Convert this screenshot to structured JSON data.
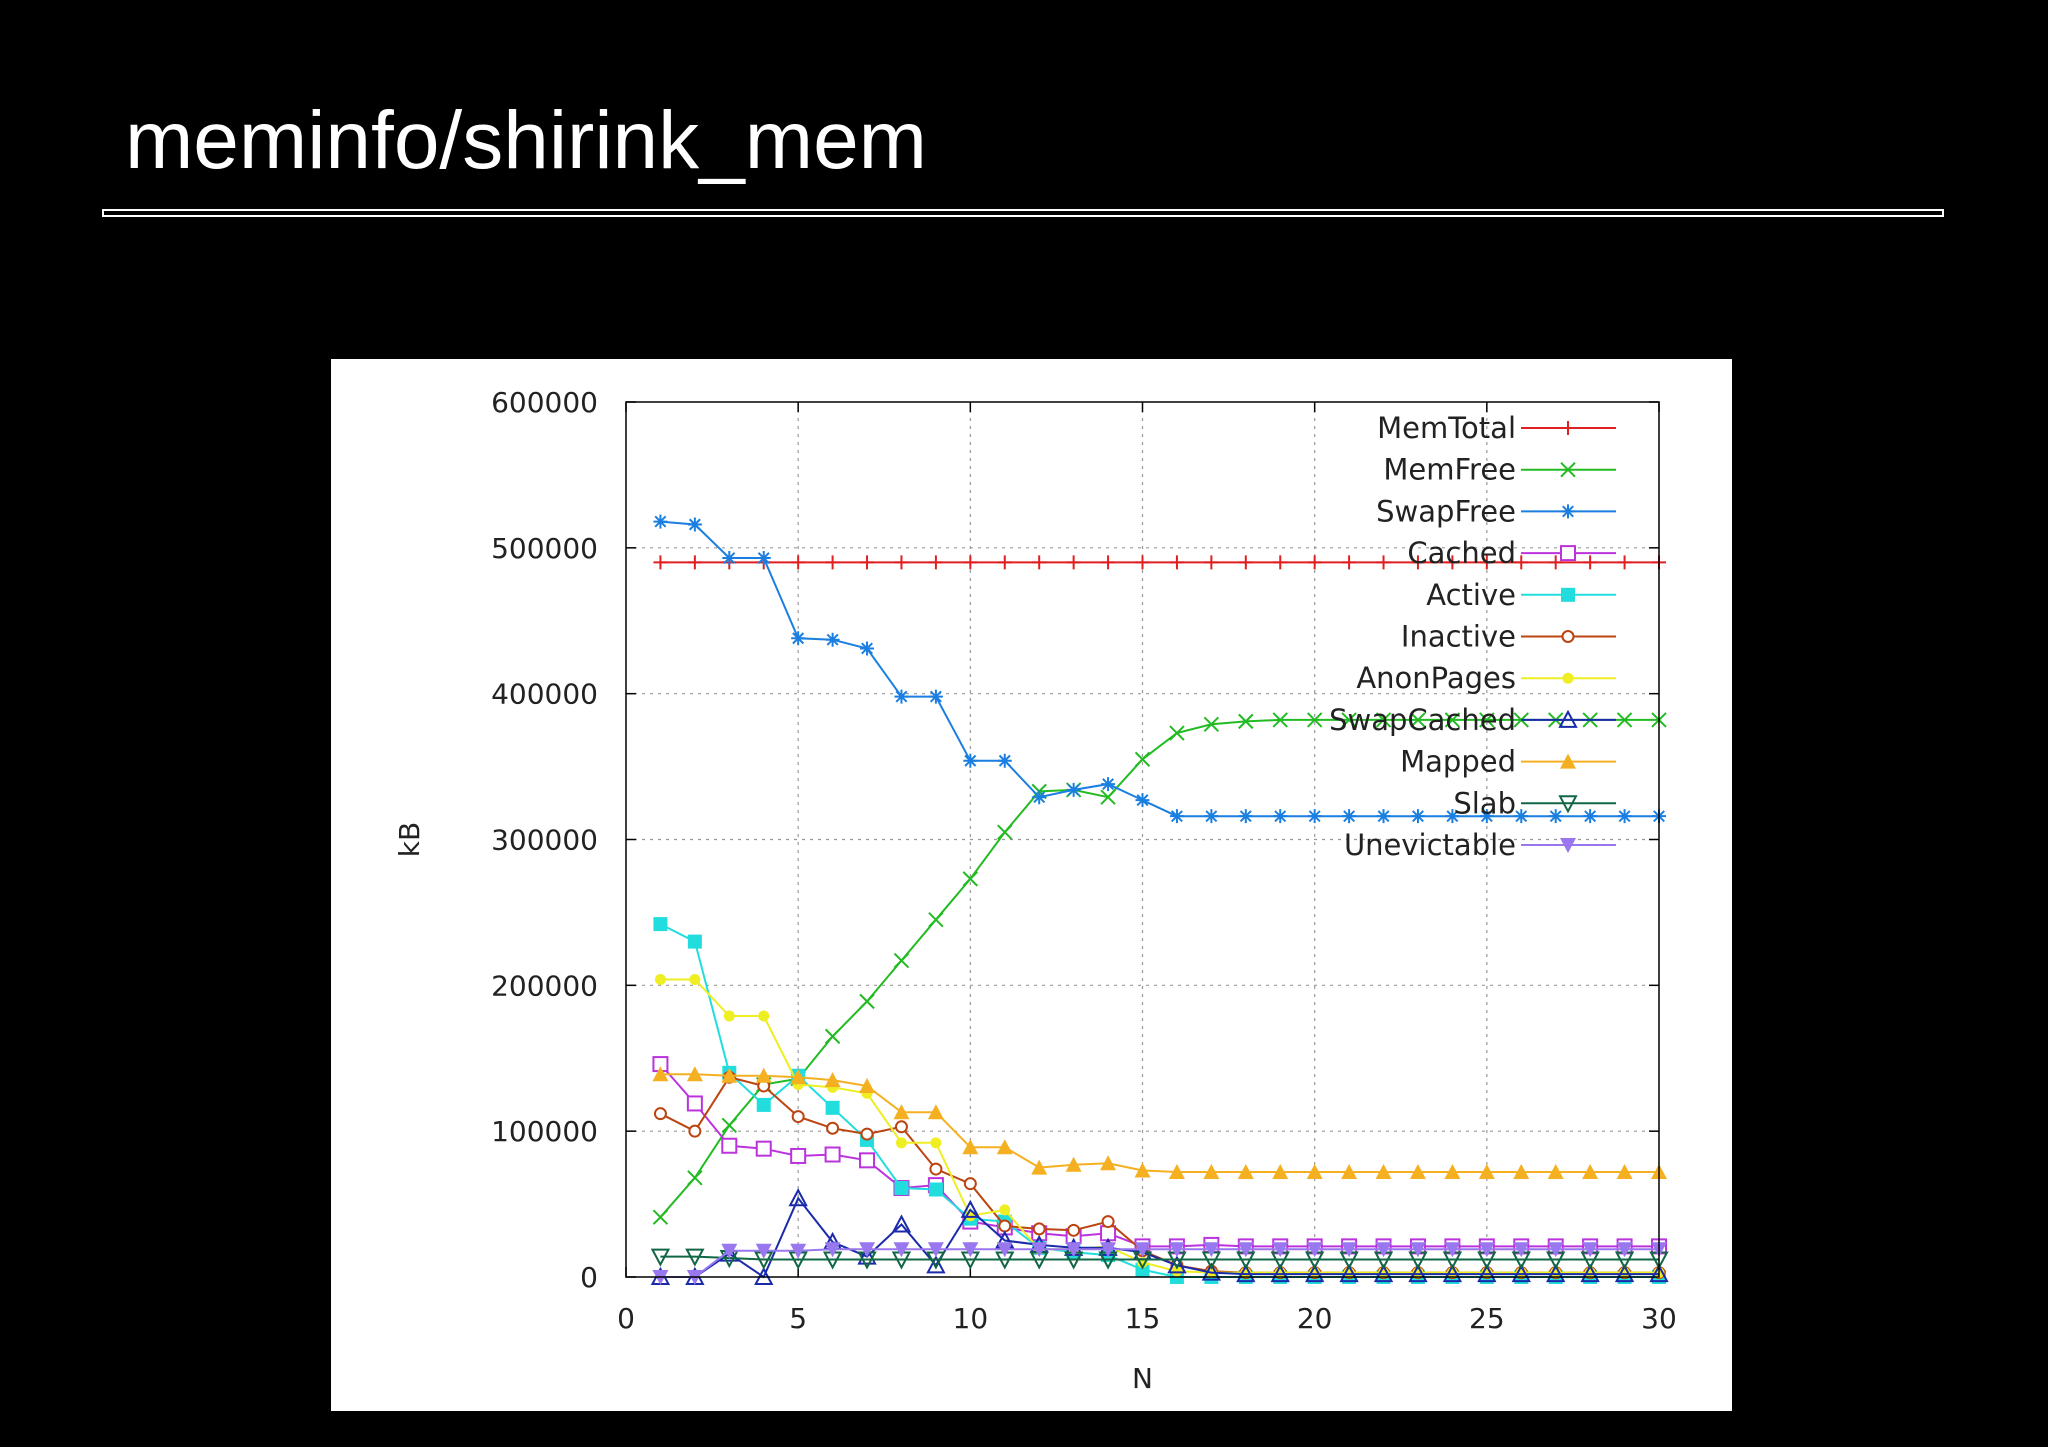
{
  "slide": {
    "title": "meminfo/shirink_mem"
  },
  "chart_data": {
    "type": "line",
    "title": "",
    "xlabel": "N",
    "ylabel": "kB",
    "xlim": [
      0,
      30
    ],
    "ylim": [
      0,
      600000
    ],
    "xticks": [
      "0",
      "5",
      "10",
      "15",
      "20",
      "25",
      "30"
    ],
    "yticks": [
      "0",
      "100000",
      "200000",
      "300000",
      "400000",
      "500000",
      "600000"
    ],
    "grid": true,
    "legend_position": "top-right",
    "x": [
      1,
      2,
      3,
      4,
      5,
      6,
      7,
      8,
      9,
      10,
      11,
      12,
      13,
      14,
      15,
      16,
      17,
      18,
      19,
      20,
      21,
      22,
      23,
      24,
      25,
      26,
      27,
      28,
      29,
      30
    ],
    "series": [
      {
        "name": "MemTotal",
        "color": "#e02020",
        "marker": "plus",
        "values": [
          490000,
          490000,
          490000,
          490000,
          490000,
          490000,
          490000,
          490000,
          490000,
          490000,
          490000,
          490000,
          490000,
          490000,
          490000,
          490000,
          490000,
          490000,
          490000,
          490000,
          490000,
          490000,
          490000,
          490000,
          490000,
          490000,
          490000,
          490000,
          490000,
          490000
        ]
      },
      {
        "name": "MemFree",
        "color": "#22bb22",
        "marker": "x",
        "values": [
          41000,
          68000,
          104000,
          132000,
          136000,
          165000,
          189000,
          217000,
          245000,
          273000,
          305000,
          333000,
          334000,
          329000,
          355000,
          373000,
          379000,
          381000,
          382000,
          382000,
          382000,
          382000,
          382000,
          382000,
          382000,
          382000,
          382000,
          382000,
          382000,
          382000
        ]
      },
      {
        "name": "SwapFree",
        "color": "#1a7fe0",
        "marker": "star",
        "values": [
          518000,
          516000,
          493000,
          493000,
          438000,
          437000,
          431000,
          398000,
          398000,
          354000,
          354000,
          329000,
          334000,
          338000,
          327000,
          316000,
          316000,
          316000,
          316000,
          316000,
          316000,
          316000,
          316000,
          316000,
          316000,
          316000,
          316000,
          316000,
          316000,
          316000
        ]
      },
      {
        "name": "Cached",
        "color": "#bb33dd",
        "marker": "square-open",
        "values": [
          146000,
          119000,
          90000,
          88000,
          83000,
          84000,
          80000,
          61000,
          63000,
          38000,
          34000,
          30000,
          28000,
          30000,
          21000,
          21000,
          22000,
          21000,
          21000,
          21000,
          21000,
          21000,
          21000,
          21000,
          21000,
          21000,
          21000,
          21000,
          21000,
          21000
        ]
      },
      {
        "name": "Active",
        "color": "#22dddd",
        "marker": "square",
        "values": [
          242000,
          230000,
          140000,
          118000,
          138000,
          116000,
          94000,
          61000,
          60000,
          40000,
          38000,
          20000,
          17000,
          15000,
          5000,
          0,
          0,
          0,
          0,
          0,
          0,
          0,
          0,
          0,
          0,
          0,
          0,
          0,
          0,
          0
        ]
      },
      {
        "name": "Inactive",
        "color": "#bb4411",
        "marker": "circle-open",
        "values": [
          112000,
          100000,
          137000,
          131000,
          110000,
          102000,
          98000,
          103000,
          74000,
          64000,
          35000,
          33000,
          32000,
          38000,
          18000,
          8000,
          4000,
          3000,
          3000,
          3000,
          3000,
          3000,
          3000,
          3000,
          3000,
          3000,
          3000,
          3000,
          3000,
          3000
        ]
      },
      {
        "name": "AnonPages",
        "color": "#eeee22",
        "marker": "circle",
        "values": [
          204000,
          204000,
          179000,
          179000,
          132000,
          130000,
          126000,
          92000,
          92000,
          42000,
          46000,
          19000,
          19000,
          21000,
          10000,
          4000,
          3000,
          3000,
          3000,
          3000,
          3000,
          3000,
          3000,
          3000,
          3000,
          3000,
          3000,
          3000,
          3000,
          3000
        ]
      },
      {
        "name": "SwapCached",
        "color": "#1a2aaa",
        "marker": "triangle-open",
        "values": [
          0,
          0,
          16000,
          0,
          54000,
          24000,
          14000,
          36000,
          8000,
          46000,
          25000,
          22000,
          20000,
          20000,
          17000,
          8000,
          3000,
          2000,
          2000,
          2000,
          2000,
          2000,
          2000,
          2000,
          2000,
          2000,
          2000,
          2000,
          2000,
          2000
        ]
      },
      {
        "name": "Mapped",
        "color": "#f5b022",
        "marker": "triangle",
        "values": [
          139000,
          139000,
          138000,
          138000,
          137000,
          135000,
          131000,
          113000,
          113000,
          89000,
          89000,
          75000,
          77000,
          78000,
          73000,
          72000,
          72000,
          72000,
          72000,
          72000,
          72000,
          72000,
          72000,
          72000,
          72000,
          72000,
          72000,
          72000,
          72000,
          72000
        ]
      },
      {
        "name": "Slab",
        "color": "#116644",
        "marker": "triangle-down-open",
        "values": [
          14000,
          14000,
          13000,
          12000,
          12000,
          12000,
          12000,
          12000,
          12000,
          12000,
          12000,
          12000,
          12000,
          12000,
          12000,
          12000,
          12000,
          12000,
          12000,
          12000,
          12000,
          12000,
          12000,
          12000,
          12000,
          12000,
          12000,
          12000,
          12000,
          12000
        ]
      },
      {
        "name": "Unevictable",
        "color": "#9977ee",
        "marker": "triangle-down",
        "values": [
          0,
          0,
          18000,
          18000,
          18000,
          19000,
          19000,
          19000,
          19000,
          19000,
          19000,
          19000,
          19000,
          19000,
          19000,
          19000,
          19000,
          19000,
          19000,
          19000,
          19000,
          19000,
          19000,
          19000,
          19000,
          19000,
          19000,
          19000,
          19000,
          19000
        ]
      }
    ]
  }
}
